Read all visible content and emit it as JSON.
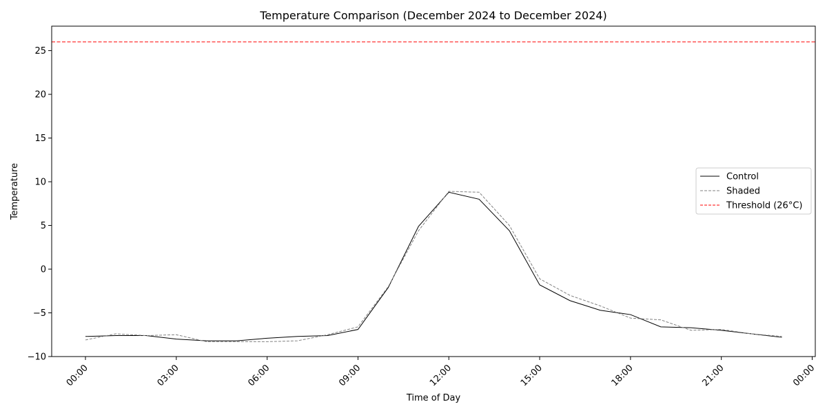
{
  "chart_data": {
    "type": "line",
    "title": "Temperature Comparison (December 2024 to December 2024)",
    "xlabel": "Time of Day",
    "ylabel": "Temperature",
    "x": [
      "00:00",
      "01:00",
      "02:00",
      "03:00",
      "04:00",
      "05:00",
      "06:00",
      "07:00",
      "08:00",
      "09:00",
      "10:00",
      "11:00",
      "12:00",
      "13:00",
      "14:00",
      "15:00",
      "16:00",
      "17:00",
      "18:00",
      "19:00",
      "20:00",
      "21:00",
      "22:00",
      "23:00"
    ],
    "x_tick_labels": [
      "00:00",
      "03:00",
      "06:00",
      "09:00",
      "12:00",
      "15:00",
      "18:00",
      "21:00",
      "00:00"
    ],
    "y_tick_labels": [
      "−10",
      "−5",
      "0",
      "5",
      "10",
      "15",
      "20",
      "25"
    ],
    "ylim": [
      -10,
      27.8
    ],
    "grid": false,
    "legend_position": "center-right",
    "series": [
      {
        "name": "Control",
        "color": "#000000",
        "style": "solid",
        "values": [
          -7.7,
          -7.6,
          -7.6,
          -8.0,
          -8.2,
          -8.2,
          -7.9,
          -7.7,
          -7.6,
          -6.9,
          -2.1,
          4.9,
          8.8,
          8.0,
          4.4,
          -1.8,
          -3.6,
          -4.7,
          -5.2,
          -6.6,
          -6.7,
          -7.0,
          -7.4,
          -7.8
        ]
      },
      {
        "name": "Shaded",
        "color": "#808080",
        "style": "dashed",
        "values": [
          -8.1,
          -7.4,
          -7.6,
          -7.5,
          -8.3,
          -8.3,
          -8.3,
          -8.2,
          -7.5,
          -6.6,
          -2.0,
          4.4,
          8.9,
          8.8,
          5.0,
          -1.1,
          -3.0,
          -4.2,
          -5.6,
          -5.8,
          -7.0,
          -6.9,
          -7.4,
          -7.7
        ]
      }
    ],
    "threshold": {
      "name": "Threshold (26°C)",
      "value": 26,
      "color": "#ff0000",
      "style": "dashed"
    }
  }
}
